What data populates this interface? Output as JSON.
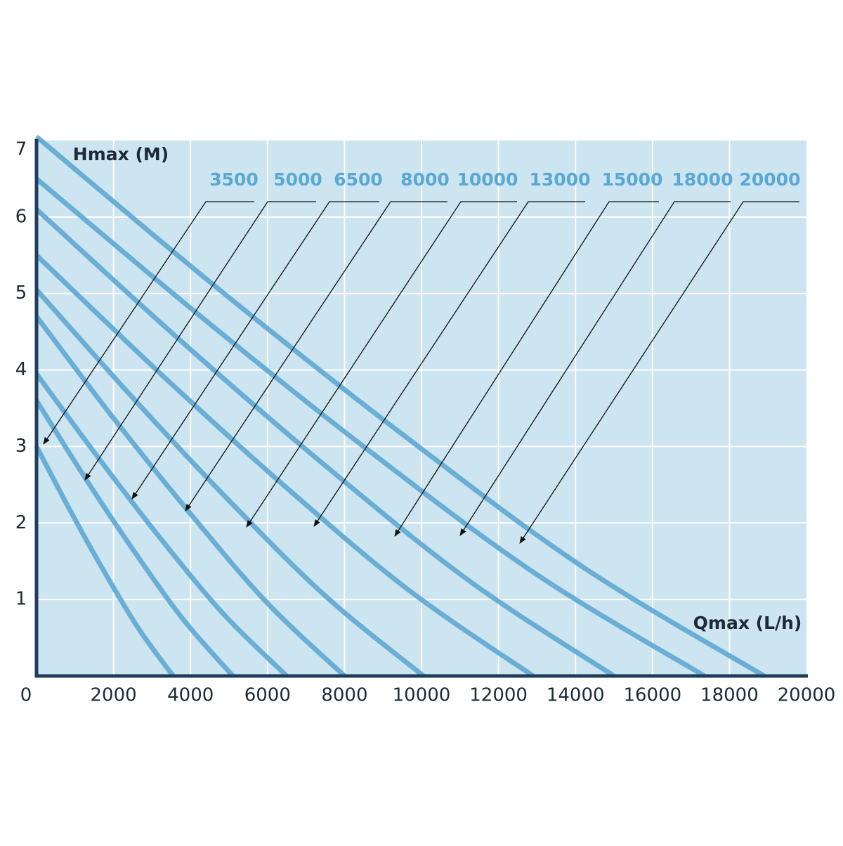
{
  "chart_data": {
    "type": "line",
    "y_label": "Hmax (M)",
    "x_label": "Qmax (L/h)",
    "xlim": [
      0,
      20000
    ],
    "xticks": [
      0,
      2000,
      4000,
      6000,
      8000,
      10000,
      12000,
      14000,
      16000,
      18000,
      20000
    ],
    "ylim": [
      0,
      7
    ],
    "yticks": [
      1,
      2,
      3,
      4,
      5,
      6,
      7
    ],
    "grid": true,
    "line_color": "#6aaed6",
    "label_color": "#5ba8d4",
    "series": [
      {
        "name": "3500",
        "x": [
          0,
          888,
          1775,
          2663,
          3550
        ],
        "values": [
          3.0,
          2.15,
          1.35,
          0.61,
          0
        ]
      },
      {
        "name": "5000",
        "x": [
          0,
          1275,
          2550,
          3825,
          5100
        ],
        "values": [
          3.6,
          2.58,
          1.62,
          0.73,
          0
        ]
      },
      {
        "name": "6500",
        "x": [
          0,
          1625,
          3250,
          4875,
          6500
        ],
        "values": [
          3.95,
          2.84,
          1.78,
          0.8,
          0
        ]
      },
      {
        "name": "8000",
        "x": [
          0,
          2000,
          4000,
          6000,
          8000
        ],
        "values": [
          4.7,
          3.37,
          2.12,
          0.95,
          0
        ]
      },
      {
        "name": "10000",
        "x": [
          0,
          2513,
          5025,
          7538,
          10050
        ],
        "values": [
          5.05,
          3.63,
          2.28,
          1.03,
          0
        ]
      },
      {
        "name": "13000",
        "x": [
          0,
          3225,
          6450,
          9675,
          12900
        ],
        "values": [
          5.5,
          3.95,
          2.48,
          1.12,
          0
        ]
      },
      {
        "name": "15000",
        "x": [
          0,
          3750,
          7500,
          11250,
          15000
        ],
        "values": [
          6.1,
          4.38,
          2.75,
          1.24,
          0
        ]
      },
      {
        "name": "18000",
        "x": [
          0,
          4338,
          8675,
          13013,
          17350
        ],
        "values": [
          6.5,
          4.67,
          2.93,
          1.32,
          0
        ]
      },
      {
        "name": "20000",
        "x": [
          0,
          4725,
          9450,
          14175,
          18900
        ],
        "values": [
          7.05,
          5.06,
          3.18,
          1.43,
          0
        ]
      }
    ]
  }
}
